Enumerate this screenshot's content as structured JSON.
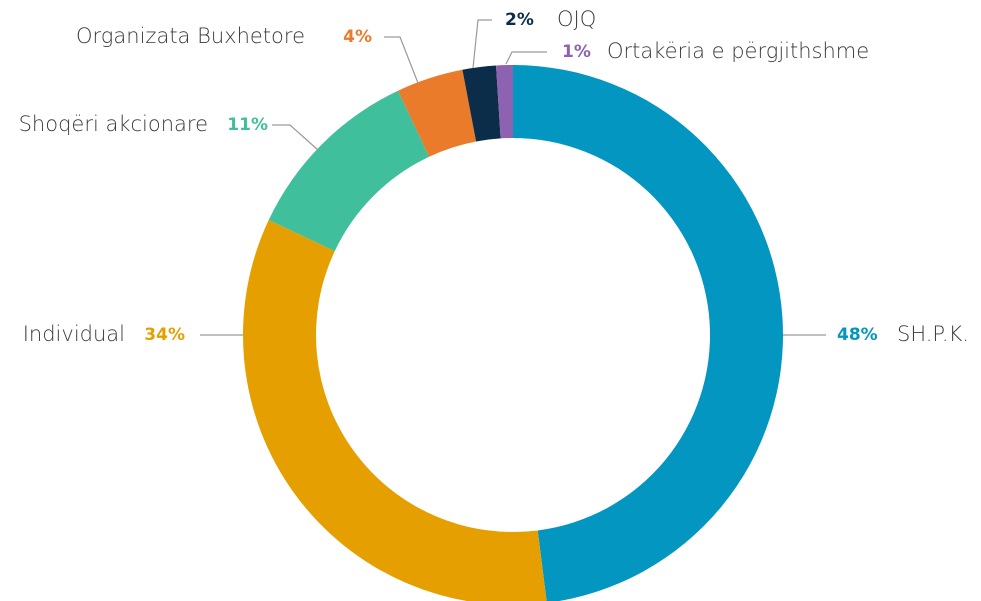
{
  "chart_data": {
    "type": "donut",
    "categories": [
      "SH.P.K.",
      "Individual",
      "Shoqëri akcionare",
      "Organizata Buxhetore",
      "OJQ",
      "Ortakëria e përgjithshme"
    ],
    "values": [
      48,
      34,
      11,
      4,
      2,
      1
    ],
    "value_labels": [
      "48%",
      "34%",
      "11%",
      "4%",
      "2%",
      "1%"
    ],
    "colors": [
      "#0396c0",
      "#e59f00",
      "#40bf9c",
      "#e97b2b",
      "#0c2d4a",
      "#8d62b0"
    ]
  }
}
